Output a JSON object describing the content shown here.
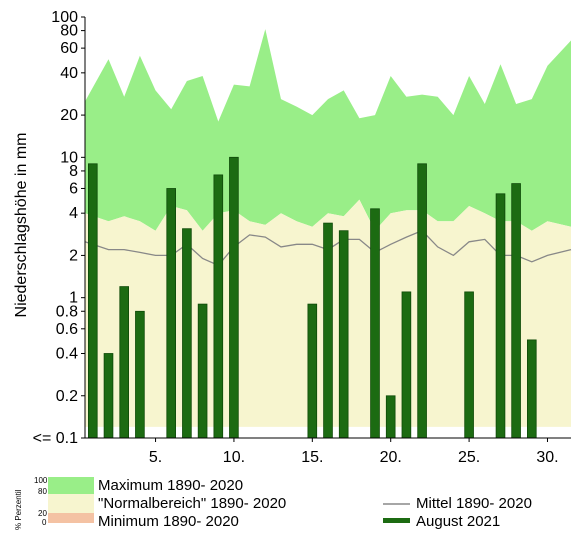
{
  "chart_data": {
    "type": "bar",
    "y_scale": "log",
    "ylabel": "Niederschlagshöhe in mm",
    "ylim": [
      0.1,
      100
    ],
    "y_ticks": [
      {
        "v": 100,
        "label": "100"
      },
      {
        "v": 80,
        "label": "80"
      },
      {
        "v": 60,
        "label": "60"
      },
      {
        "v": 40,
        "label": "40"
      },
      {
        "v": 20,
        "label": "20"
      },
      {
        "v": 10,
        "label": "10"
      },
      {
        "v": 8,
        "label": "8"
      },
      {
        "v": 6,
        "label": "6"
      },
      {
        "v": 4,
        "label": "4"
      },
      {
        "v": 2,
        "label": "2"
      },
      {
        "v": 1,
        "label": "1"
      },
      {
        "v": 0.8,
        "label": "0.8"
      },
      {
        "v": 0.6,
        "label": "0.6"
      },
      {
        "v": 0.4,
        "label": "0.4"
      },
      {
        "v": 0.2,
        "label": "0.2"
      },
      {
        "v": 0.1,
        "label": "<= 0.1"
      }
    ],
    "x_ticks": [
      {
        "v": 5,
        "label": "5."
      },
      {
        "v": 10,
        "label": "10."
      },
      {
        "v": 15,
        "label": "15."
      },
      {
        "v": 20,
        "label": "20."
      },
      {
        "v": 25,
        "label": "25."
      },
      {
        "v": 30,
        "label": "30."
      }
    ],
    "days": [
      1,
      2,
      3,
      4,
      5,
      6,
      7,
      8,
      9,
      10,
      11,
      12,
      13,
      14,
      15,
      16,
      17,
      18,
      19,
      20,
      21,
      22,
      23,
      24,
      25,
      26,
      27,
      28,
      29,
      30,
      31
    ],
    "maximum": [
      25,
      50,
      27,
      53,
      30,
      22,
      35,
      38,
      18,
      33,
      32,
      82,
      26,
      23,
      20,
      26,
      30,
      19,
      20,
      38,
      27,
      28,
      27,
      20,
      38,
      24,
      46,
      24,
      26,
      45,
      68
    ],
    "normal_upper": [
      4.0,
      3.5,
      3.8,
      3.5,
      3.0,
      4.5,
      4.2,
      3.0,
      4.0,
      4.2,
      3.5,
      3.3,
      4.0,
      3.5,
      3.2,
      4.0,
      3.8,
      5.0,
      3.0,
      4.0,
      4.2,
      4.2,
      3.5,
      3.5,
      4.5,
      4.0,
      3.5,
      3.5,
      3.0,
      3.5,
      3.2
    ],
    "mean": [
      2.5,
      2.2,
      2.2,
      2.1,
      2.0,
      2.0,
      2.4,
      1.9,
      1.7,
      2.3,
      2.8,
      2.7,
      2.3,
      2.4,
      2.4,
      2.2,
      2.6,
      2.6,
      2.1,
      2.4,
      2.7,
      3.0,
      2.3,
      2.0,
      2.5,
      2.6,
      2.0,
      2.0,
      1.8,
      2.0,
      2.2
    ],
    "normal_lower": [
      0.12,
      0.12,
      0.12,
      0.12,
      0.12,
      0.12,
      0.12,
      0.12,
      0.12,
      0.12,
      0.12,
      0.12,
      0.12,
      0.12,
      0.12,
      0.12,
      0.12,
      0.12,
      0.12,
      0.12,
      0.12,
      0.12,
      0.12,
      0.12,
      0.12,
      0.12,
      0.12,
      0.12,
      0.12,
      0.12,
      0.12
    ],
    "august_2021": [
      9.0,
      0.4,
      1.2,
      0.8,
      null,
      6.0,
      3.1,
      0.9,
      7.5,
      10.0,
      null,
      null,
      null,
      null,
      0.9,
      3.4,
      3.0,
      null,
      4.3,
      0.2,
      1.1,
      9.0,
      null,
      null,
      1.1,
      null,
      5.5,
      6.5,
      0.5,
      null,
      null
    ],
    "legend": {
      "percentile_label": "% Perzentil",
      "percentile_ticks": [
        "100",
        "80",
        "20",
        "0"
      ],
      "maximum": "Maximum 1890- 2020",
      "normal": "\"Normalbereich\" 1890- 2020",
      "minimum": "Minimum 1890- 2020",
      "mean": "Mittel 1890- 2020",
      "august": "August 2021"
    },
    "colors": {
      "maximum": "#99ee88",
      "normal": "#f7f5cf",
      "minimum": "#f4c2a3",
      "mean": "#888888",
      "august": "#1c6b12",
      "august_edge": "#0e4a08"
    }
  }
}
